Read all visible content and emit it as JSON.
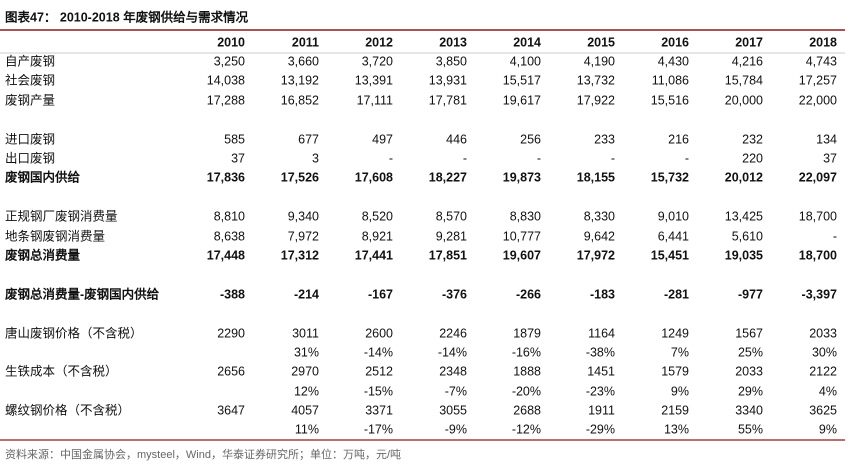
{
  "title": "图表47：  2010-2018 年废钢供给与需求情况",
  "table": {
    "header": [
      "2010",
      "2011",
      "2012",
      "2013",
      "2014",
      "2015",
      "2016",
      "2017",
      "2018"
    ],
    "rows": [
      {
        "label": "自产废钢",
        "cells": [
          "3,250",
          "3,660",
          "3,720",
          "3,850",
          "4,100",
          "4,190",
          "4,430",
          "4,216",
          "4,743"
        ]
      },
      {
        "label": "社会废钢",
        "cells": [
          "14,038",
          "13,192",
          "13,391",
          "13,931",
          "15,517",
          "13,732",
          "11,086",
          "15,784",
          "17,257"
        ]
      },
      {
        "label": "废钢产量",
        "cells": [
          "17,288",
          "16,852",
          "17,111",
          "17,781",
          "19,617",
          "17,922",
          "15,516",
          "20,000",
          "22,000"
        ]
      },
      {
        "label": "进口废钢",
        "cells": [
          "585",
          "677",
          "497",
          "446",
          "256",
          "233",
          "216",
          "232",
          "134"
        ]
      },
      {
        "label": "出口废钢",
        "cells": [
          "37",
          "3",
          "-",
          "-",
          "-",
          "-",
          "-",
          "220",
          "37"
        ]
      },
      {
        "label": "废钢国内供给",
        "bold": true,
        "cells": [
          "17,836",
          "17,526",
          "17,608",
          "18,227",
          "19,873",
          "18,155",
          "15,732",
          "20,012",
          "22,097"
        ]
      },
      {
        "label": "正规钢厂废钢消费量",
        "cells": [
          "8,810",
          "9,340",
          "8,520",
          "8,570",
          "8,830",
          "8,330",
          "9,010",
          "13,425",
          "18,700"
        ]
      },
      {
        "label": "地条钢废钢消费量",
        "cells": [
          "8,638",
          "7,972",
          "8,921",
          "9,281",
          "10,777",
          "9,642",
          "6,441",
          "5,610",
          "-"
        ]
      },
      {
        "label": "废钢总消费量",
        "bold": true,
        "cells": [
          "17,448",
          "17,312",
          "17,441",
          "17,851",
          "19,607",
          "17,972",
          "15,451",
          "19,035",
          "18,700"
        ]
      },
      {
        "label": "废钢总消费量-废钢国内供给",
        "bold": true,
        "cells": [
          "-388",
          "-214",
          "-167",
          "-376",
          "-266",
          "-183",
          "-281",
          "-977",
          "-3,397"
        ]
      },
      {
        "label": "唐山废钢价格（不含税）",
        "cells": [
          "2290",
          "3011",
          "2600",
          "2246",
          "1879",
          "1164",
          "1249",
          "1567",
          "2033"
        ]
      },
      {
        "label": null,
        "cells": [
          null,
          "31%",
          "-14%",
          "-14%",
          "-16%",
          "-38%",
          "7%",
          "25%",
          "30%"
        ]
      },
      {
        "label": "生铁成本（不含税）",
        "cells": [
          "2656",
          "2970",
          "2512",
          "2348",
          "1888",
          "1451",
          "1579",
          "2033",
          "2122"
        ]
      },
      {
        "label": null,
        "cells": [
          null,
          "12%",
          "-15%",
          "-7%",
          "-20%",
          "-23%",
          "9%",
          "29%",
          "4%"
        ]
      },
      {
        "label": "螺纹钢价格（不含税）",
        "cells": [
          "3647",
          "4057",
          "3371",
          "3055",
          "2688",
          "1911",
          "2159",
          "3340",
          "3625"
        ]
      },
      {
        "label": null,
        "cells": [
          null,
          "11%",
          "-17%",
          "-9%",
          "-12%",
          "-29%",
          "13%",
          "55%",
          "9%"
        ]
      }
    ]
  },
  "source": "资料来源：中国金属协会，mysteel，Wind，华泰证券研究所；单位：万吨，元/吨"
}
